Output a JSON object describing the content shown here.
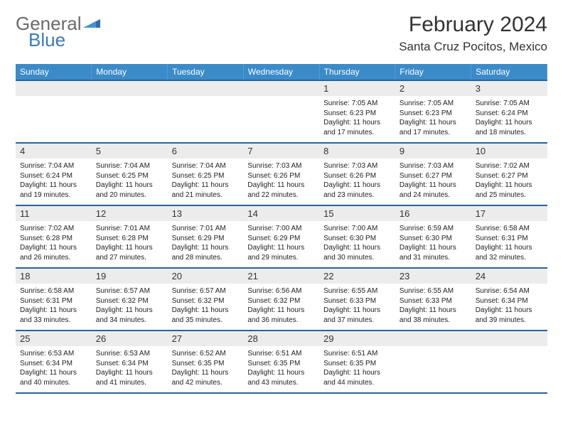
{
  "brand": {
    "name1": "General",
    "name2": "Blue"
  },
  "title": "February 2024",
  "location": "Santa Cruz Pocitos, Mexico",
  "colors": {
    "header_bg": "#3b8bc9",
    "header_text": "#ffffff",
    "rule": "#2a6496",
    "daynum_bg": "#ececec",
    "logo_gray": "#6a6a6a",
    "logo_blue": "#3b7bb8"
  },
  "day_headers": [
    "Sunday",
    "Monday",
    "Tuesday",
    "Wednesday",
    "Thursday",
    "Friday",
    "Saturday"
  ],
  "weeks": [
    [
      null,
      null,
      null,
      null,
      {
        "n": "1",
        "sr": "Sunrise: 7:05 AM",
        "ss": "Sunset: 6:23 PM",
        "dl": "Daylight: 11 hours and 17 minutes."
      },
      {
        "n": "2",
        "sr": "Sunrise: 7:05 AM",
        "ss": "Sunset: 6:23 PM",
        "dl": "Daylight: 11 hours and 17 minutes."
      },
      {
        "n": "3",
        "sr": "Sunrise: 7:05 AM",
        "ss": "Sunset: 6:24 PM",
        "dl": "Daylight: 11 hours and 18 minutes."
      }
    ],
    [
      {
        "n": "4",
        "sr": "Sunrise: 7:04 AM",
        "ss": "Sunset: 6:24 PM",
        "dl": "Daylight: 11 hours and 19 minutes."
      },
      {
        "n": "5",
        "sr": "Sunrise: 7:04 AM",
        "ss": "Sunset: 6:25 PM",
        "dl": "Daylight: 11 hours and 20 minutes."
      },
      {
        "n": "6",
        "sr": "Sunrise: 7:04 AM",
        "ss": "Sunset: 6:25 PM",
        "dl": "Daylight: 11 hours and 21 minutes."
      },
      {
        "n": "7",
        "sr": "Sunrise: 7:03 AM",
        "ss": "Sunset: 6:26 PM",
        "dl": "Daylight: 11 hours and 22 minutes."
      },
      {
        "n": "8",
        "sr": "Sunrise: 7:03 AM",
        "ss": "Sunset: 6:26 PM",
        "dl": "Daylight: 11 hours and 23 minutes."
      },
      {
        "n": "9",
        "sr": "Sunrise: 7:03 AM",
        "ss": "Sunset: 6:27 PM",
        "dl": "Daylight: 11 hours and 24 minutes."
      },
      {
        "n": "10",
        "sr": "Sunrise: 7:02 AM",
        "ss": "Sunset: 6:27 PM",
        "dl": "Daylight: 11 hours and 25 minutes."
      }
    ],
    [
      {
        "n": "11",
        "sr": "Sunrise: 7:02 AM",
        "ss": "Sunset: 6:28 PM",
        "dl": "Daylight: 11 hours and 26 minutes."
      },
      {
        "n": "12",
        "sr": "Sunrise: 7:01 AM",
        "ss": "Sunset: 6:28 PM",
        "dl": "Daylight: 11 hours and 27 minutes."
      },
      {
        "n": "13",
        "sr": "Sunrise: 7:01 AM",
        "ss": "Sunset: 6:29 PM",
        "dl": "Daylight: 11 hours and 28 minutes."
      },
      {
        "n": "14",
        "sr": "Sunrise: 7:00 AM",
        "ss": "Sunset: 6:29 PM",
        "dl": "Daylight: 11 hours and 29 minutes."
      },
      {
        "n": "15",
        "sr": "Sunrise: 7:00 AM",
        "ss": "Sunset: 6:30 PM",
        "dl": "Daylight: 11 hours and 30 minutes."
      },
      {
        "n": "16",
        "sr": "Sunrise: 6:59 AM",
        "ss": "Sunset: 6:30 PM",
        "dl": "Daylight: 11 hours and 31 minutes."
      },
      {
        "n": "17",
        "sr": "Sunrise: 6:58 AM",
        "ss": "Sunset: 6:31 PM",
        "dl": "Daylight: 11 hours and 32 minutes."
      }
    ],
    [
      {
        "n": "18",
        "sr": "Sunrise: 6:58 AM",
        "ss": "Sunset: 6:31 PM",
        "dl": "Daylight: 11 hours and 33 minutes."
      },
      {
        "n": "19",
        "sr": "Sunrise: 6:57 AM",
        "ss": "Sunset: 6:32 PM",
        "dl": "Daylight: 11 hours and 34 minutes."
      },
      {
        "n": "20",
        "sr": "Sunrise: 6:57 AM",
        "ss": "Sunset: 6:32 PM",
        "dl": "Daylight: 11 hours and 35 minutes."
      },
      {
        "n": "21",
        "sr": "Sunrise: 6:56 AM",
        "ss": "Sunset: 6:32 PM",
        "dl": "Daylight: 11 hours and 36 minutes."
      },
      {
        "n": "22",
        "sr": "Sunrise: 6:55 AM",
        "ss": "Sunset: 6:33 PM",
        "dl": "Daylight: 11 hours and 37 minutes."
      },
      {
        "n": "23",
        "sr": "Sunrise: 6:55 AM",
        "ss": "Sunset: 6:33 PM",
        "dl": "Daylight: 11 hours and 38 minutes."
      },
      {
        "n": "24",
        "sr": "Sunrise: 6:54 AM",
        "ss": "Sunset: 6:34 PM",
        "dl": "Daylight: 11 hours and 39 minutes."
      }
    ],
    [
      {
        "n": "25",
        "sr": "Sunrise: 6:53 AM",
        "ss": "Sunset: 6:34 PM",
        "dl": "Daylight: 11 hours and 40 minutes."
      },
      {
        "n": "26",
        "sr": "Sunrise: 6:53 AM",
        "ss": "Sunset: 6:34 PM",
        "dl": "Daylight: 11 hours and 41 minutes."
      },
      {
        "n": "27",
        "sr": "Sunrise: 6:52 AM",
        "ss": "Sunset: 6:35 PM",
        "dl": "Daylight: 11 hours and 42 minutes."
      },
      {
        "n": "28",
        "sr": "Sunrise: 6:51 AM",
        "ss": "Sunset: 6:35 PM",
        "dl": "Daylight: 11 hours and 43 minutes."
      },
      {
        "n": "29",
        "sr": "Sunrise: 6:51 AM",
        "ss": "Sunset: 6:35 PM",
        "dl": "Daylight: 11 hours and 44 minutes."
      },
      null,
      null
    ]
  ]
}
